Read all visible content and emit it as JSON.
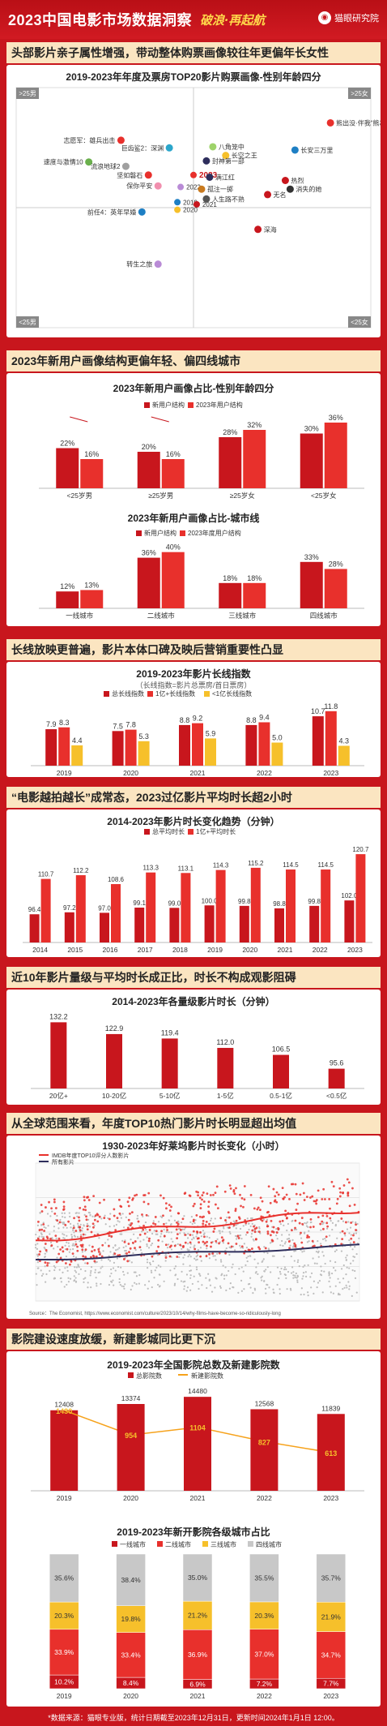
{
  "header": {
    "title": "2023中国电影市场数据洞察",
    "slogan": "破浪·再起航",
    "logo_text": "猫眼研究院",
    "logo_icon": "maoyan-cat-icon"
  },
  "sections": [
    {
      "heading": "头部影片亲子属性增强，带动整体购票画像较往年更偏年长女性"
    },
    {
      "heading": "2023年新用户画像结构更偏年轻、偏四线城市"
    },
    {
      "heading": "长线放映更普遍，影片本体口碑及映后营销重要性凸显"
    },
    {
      "heading": "“电影越拍越长”成常态，2023过亿影片平均时长超2小时"
    },
    {
      "heading": "近10年影片量级与平均时长成正比，时长不构成观影阻碍"
    },
    {
      "heading": "从全球范围来看，年度TOP10热门影片时长明显超出均值"
    },
    {
      "heading": "影院建设速度放缓，新建影城同比更下沉"
    }
  ],
  "colors": {
    "red": "#c8161d",
    "bright_red": "#e8302c",
    "yellow": "#f6c02b",
    "grey": "#c8c8c8",
    "dark_navy": "#2e2e5c",
    "band": "#fbe5c1"
  },
  "chart_data": [
    {
      "type": "scatter",
      "title": "2019-2023年年度及票房TOP20影片购票画像-性别年龄四分",
      "corner_labels": {
        "top_left": ">25男",
        "top_right": ">25女",
        "bottom_left": "<25男",
        "bottom_right": "<25女"
      },
      "points": [
        {
          "label": "熊出没·伴我“熊芯”",
          "x": 0.85,
          "y": 0.78,
          "color": "#e8302c"
        },
        {
          "label": "志愿军：雄兵出击",
          "x": -0.45,
          "y": 0.62,
          "color": "#e8302c"
        },
        {
          "label": "巨齿鲨2：深渊",
          "x": -0.15,
          "y": 0.55,
          "color": "#2ba6cb"
        },
        {
          "label": "八角笼中",
          "x": 0.12,
          "y": 0.56,
          "color": "#9ed36a"
        },
        {
          "label": "长空之王",
          "x": 0.2,
          "y": 0.48,
          "color": "#f6c02b"
        },
        {
          "label": "长安三万里",
          "x": 0.63,
          "y": 0.53,
          "color": "#1e7fc4"
        },
        {
          "label": "速度与激情10",
          "x": -0.65,
          "y": 0.42,
          "color": "#6ab04c"
        },
        {
          "label": "流浪地球2",
          "x": -0.42,
          "y": 0.38,
          "color": "#a0a0a0"
        },
        {
          "label": "封神第一部",
          "x": 0.08,
          "y": 0.43,
          "color": "#2e2e5c"
        },
        {
          "label": "坚如磐石",
          "x": -0.28,
          "y": 0.3,
          "color": "#e8302c"
        },
        {
          "label": "2023",
          "x": 0.0,
          "y": 0.3,
          "color": "#e8302c"
        },
        {
          "label": "满江红",
          "x": 0.1,
          "y": 0.28,
          "color": "#2e2e5c"
        },
        {
          "label": "保你平安",
          "x": -0.22,
          "y": 0.2,
          "color": "#f18fae"
        },
        {
          "label": "2022",
          "x": -0.08,
          "y": 0.19,
          "color": "#b98bd6"
        },
        {
          "label": "孤注一掷",
          "x": 0.05,
          "y": 0.17,
          "color": "#c97a1f"
        },
        {
          "label": "热烈",
          "x": 0.57,
          "y": 0.25,
          "color": "#c8161d"
        },
        {
          "label": "消失的她",
          "x": 0.6,
          "y": 0.17,
          "color": "#333333"
        },
        {
          "label": "无名",
          "x": 0.46,
          "y": 0.12,
          "color": "#c8161d"
        },
        {
          "label": "人生路不熟",
          "x": 0.08,
          "y": 0.08,
          "color": "#555555"
        },
        {
          "label": "2019",
          "x": -0.1,
          "y": 0.05,
          "color": "#1e7fc4"
        },
        {
          "label": "2021",
          "x": 0.02,
          "y": 0.03,
          "color": "#c8161d"
        },
        {
          "label": "2020",
          "x": -0.1,
          "y": -0.02,
          "color": "#f6c02b"
        },
        {
          "label": "前任4：英年早婚",
          "x": -0.32,
          "y": -0.04,
          "color": "#1e7fc4"
        },
        {
          "label": "深海",
          "x": 0.4,
          "y": -0.2,
          "color": "#c8161d"
        },
        {
          "label": "转生之旅",
          "x": -0.22,
          "y": -0.52,
          "color": "#b98bd6"
        }
      ]
    },
    {
      "type": "bar",
      "title": "2023年新用户画像占比-性别年龄四分",
      "categories": [
        "<25岁男",
        "≥25岁男",
        "≥25岁女",
        "<25岁女"
      ],
      "series": [
        {
          "name": "新用户结构",
          "values": [
            22,
            20,
            28,
            30
          ]
        },
        {
          "name": "2023年用户结构",
          "values": [
            16,
            16,
            32,
            36
          ]
        }
      ],
      "unit": "%",
      "ylim": [
        0,
        40
      ]
    },
    {
      "type": "bar",
      "title": "2023年新用户画像占比-城市线",
      "categories": [
        "一线城市",
        "二线城市",
        "三线城市",
        "四线城市"
      ],
      "series": [
        {
          "name": "新用户结构",
          "values": [
            12,
            36,
            18,
            33
          ]
        },
        {
          "name": "2023年度用户结构",
          "values": [
            13,
            40,
            18,
            28
          ]
        }
      ],
      "unit": "%",
      "ylim": [
        0,
        45
      ]
    },
    {
      "type": "bar",
      "title": "2019-2023年影片长线指数",
      "subtitle": "（长线指数=影片总票房/首日票房）",
      "categories": [
        "2019",
        "2020",
        "2021",
        "2022",
        "2023"
      ],
      "series": [
        {
          "name": "总长线指数",
          "values": [
            7.9,
            7.5,
            8.8,
            8.8,
            10.7
          ]
        },
        {
          "name": "1亿+长线指数",
          "values": [
            8.3,
            7.8,
            9.2,
            9.4,
            11.8
          ]
        },
        {
          "name": "<1亿长线指数",
          "values": [
            4.4,
            5.3,
            5.9,
            5.0,
            4.3
          ]
        }
      ],
      "ylim": [
        0,
        13
      ]
    },
    {
      "type": "bar",
      "title": "2014-2023年影片时长变化趋势（分钟）",
      "categories": [
        "2014",
        "2015",
        "2016",
        "2017",
        "2018",
        "2019",
        "2020",
        "2021",
        "2022",
        "2023"
      ],
      "series": [
        {
          "name": "总平均时长",
          "values": [
            96.4,
            97.2,
            97.0,
            99.1,
            99.0,
            100.0,
            99.8,
            98.8,
            99.8,
            102.0
          ]
        },
        {
          "name": "1亿+平均时长",
          "values": [
            110.7,
            112.2,
            108.6,
            113.3,
            113.1,
            114.3,
            115.2,
            114.5,
            114.5,
            120.7
          ]
        }
      ],
      "ylim": [
        85,
        125
      ]
    },
    {
      "type": "bar",
      "title": "2014-2023年各量级影片时长（分钟）",
      "categories": [
        "20亿+",
        "10-20亿",
        "5-10亿",
        "1-5亿",
        "0.5-1亿",
        "<0.5亿"
      ],
      "values": [
        132.2,
        122.9,
        119.4,
        112.0,
        106.5,
        95.6
      ],
      "ylim": [
        80,
        135
      ]
    },
    {
      "type": "scatter",
      "title": "1930-2023年好莱坞影片时长变化（小时）",
      "legend": [
        "IMDB年度TOP10评分人数影片",
        "所有影片"
      ],
      "source": "Source：The Economist, https://www.economist.com/culture/2023/10/14/why-films-have-become-so-ridiculously-long",
      "x_range": [
        1930,
        2023
      ]
    },
    {
      "type": "bar",
      "title": "2019-2023年全国影院总数及新建影院数",
      "categories": [
        "2019",
        "2020",
        "2021",
        "2022",
        "2023"
      ],
      "series": [
        {
          "name": "总影院数",
          "values": [
            12408,
            13374,
            14480,
            12568,
            11839
          ]
        },
        {
          "name": "新建影院数",
          "values": [
            1430,
            954,
            1104,
            827,
            613
          ]
        }
      ]
    },
    {
      "type": "bar",
      "stacked": true,
      "title": "2019-2023年新开影院各级城市占比",
      "categories": [
        "2019",
        "2020",
        "2021",
        "2022",
        "2023"
      ],
      "series": [
        {
          "name": "一线城市",
          "values": [
            10.2,
            8.4,
            6.9,
            7.2,
            7.7
          ]
        },
        {
          "name": "二线城市",
          "values": [
            33.9,
            33.4,
            36.9,
            37.0,
            34.7
          ]
        },
        {
          "name": "三线城市",
          "values": [
            20.3,
            19.8,
            21.2,
            20.3,
            21.9
          ]
        },
        {
          "name": "四线城市",
          "values": [
            35.6,
            38.4,
            35.0,
            35.5,
            35.7
          ]
        }
      ],
      "unit": "%"
    }
  ],
  "footer": "*数据来源：猫眼专业版，统计日期截至2023年12月31日，更新时间2024年1月1日 12:00。"
}
